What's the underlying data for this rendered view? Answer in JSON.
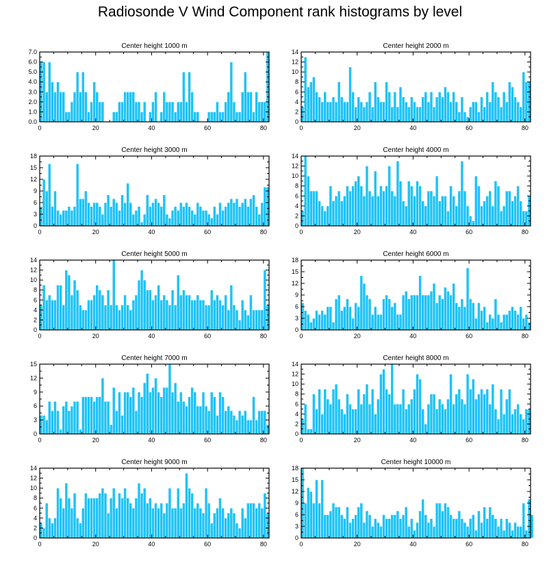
{
  "title": "Radiosonde V Wind Component rank histograms by level",
  "colors": {
    "bar": "#1ec3f7",
    "bar_edge": "#ffffff",
    "axis": "#000000"
  },
  "chart_data": [
    {
      "type": "bar",
      "title": "Center height 1000 m",
      "xlim": [
        0,
        82
      ],
      "ylim": [
        0,
        7
      ],
      "xticks": [
        0,
        20,
        40,
        60,
        80
      ],
      "yticks": [
        0,
        1,
        2,
        3,
        4,
        5,
        6,
        7
      ],
      "ytick_labels": [
        "0.0",
        "1.0",
        "2.0",
        "3.0",
        "4.0",
        "5.0",
        "6.0",
        "7.0"
      ],
      "values": [
        6,
        6,
        3,
        6,
        4,
        3,
        4,
        3,
        3,
        1,
        1,
        2,
        3,
        5,
        3,
        5,
        3,
        1,
        2,
        4,
        3,
        2,
        2,
        0,
        0,
        0,
        1,
        1,
        2,
        2,
        3,
        3,
        3,
        3,
        2,
        2,
        1,
        2,
        0,
        1,
        2,
        3,
        0,
        1,
        3,
        2,
        2,
        2,
        1,
        2,
        2,
        5,
        2,
        5,
        3,
        1,
        1,
        0,
        0,
        0,
        1,
        1,
        1,
        2,
        1,
        1,
        2,
        3,
        6,
        2,
        1,
        1,
        3,
        5,
        3,
        3,
        1,
        3,
        2,
        2,
        2,
        7
      ]
    },
    {
      "type": "bar",
      "title": "Center height 2000 m",
      "xlim": [
        0,
        82
      ],
      "ylim": [
        0,
        14
      ],
      "xticks": [
        0,
        20,
        40,
        60,
        80
      ],
      "yticks": [
        0,
        2,
        4,
        6,
        8,
        10,
        12,
        14
      ],
      "ytick_labels": [
        "0",
        "2",
        "4",
        "6",
        "8",
        "10",
        "12",
        "14"
      ],
      "values": [
        3,
        13,
        7,
        8,
        9,
        6,
        5,
        4,
        6,
        4,
        4,
        5,
        4,
        8,
        5,
        4,
        4,
        11,
        6,
        3,
        5,
        4,
        3,
        4,
        6,
        3,
        8,
        5,
        4,
        4,
        8,
        6,
        3,
        6,
        3,
        7,
        5,
        4,
        3,
        5,
        4,
        3,
        3,
        5,
        6,
        4,
        6,
        3,
        5,
        6,
        5,
        7,
        6,
        4,
        6,
        4,
        2,
        5,
        2,
        1,
        3,
        4,
        4,
        2,
        5,
        3,
        6,
        4,
        8,
        6,
        5,
        3,
        6,
        4,
        8,
        7,
        5,
        4,
        3,
        10,
        8,
        8
      ]
    },
    {
      "type": "bar",
      "title": "Center height 3000 m",
      "xlim": [
        0,
        82
      ],
      "ylim": [
        0,
        18
      ],
      "xticks": [
        0,
        20,
        40,
        60,
        80
      ],
      "yticks": [
        0,
        3,
        6,
        9,
        12,
        15,
        18
      ],
      "ytick_labels": [
        "0",
        "3",
        "6",
        "9",
        "12",
        "15",
        "18"
      ],
      "values": [
        5,
        12,
        9,
        16,
        5,
        9,
        4,
        3,
        4,
        4,
        5,
        4,
        5,
        16,
        7,
        7,
        9,
        6,
        5,
        6,
        6,
        5,
        3,
        6,
        8,
        5,
        7,
        6,
        4,
        8,
        6,
        11,
        6,
        3,
        4,
        5,
        1,
        3,
        8,
        5,
        6,
        7,
        6,
        5,
        8,
        3,
        2,
        4,
        5,
        4,
        6,
        5,
        6,
        5,
        4,
        3,
        6,
        5,
        4,
        4,
        3,
        2,
        5,
        3,
        6,
        4,
        5,
        6,
        7,
        6,
        7,
        5,
        6,
        7,
        5,
        7,
        8,
        5,
        3,
        6,
        10,
        10
      ]
    },
    {
      "type": "bar",
      "title": "Center height 4000 m",
      "xlim": [
        0,
        82
      ],
      "ylim": [
        0,
        14
      ],
      "xticks": [
        0,
        20,
        40,
        60,
        80
      ],
      "yticks": [
        0,
        2,
        4,
        6,
        8,
        10,
        12,
        14
      ],
      "ytick_labels": [
        "0",
        "2",
        "4",
        "6",
        "8",
        "10",
        "12",
        "14"
      ],
      "values": [
        3,
        14,
        10,
        7,
        7,
        7,
        5,
        4,
        3,
        4,
        8,
        5,
        6,
        7,
        5,
        6,
        8,
        7,
        8,
        9,
        10,
        8,
        6,
        12,
        7,
        6,
        11,
        6,
        8,
        7,
        8,
        12,
        7,
        6,
        13,
        9,
        5,
        4,
        9,
        8,
        6,
        9,
        8,
        5,
        4,
        7,
        7,
        6,
        10,
        5,
        6,
        6,
        3,
        8,
        6,
        4,
        7,
        13,
        7,
        4,
        2,
        1,
        10,
        8,
        4,
        5,
        6,
        7,
        4,
        9,
        8,
        3,
        4,
        7,
        7,
        5,
        6,
        8,
        5,
        3,
        3,
        6
      ]
    },
    {
      "type": "bar",
      "title": "Center height 5000 m",
      "xlim": [
        0,
        82
      ],
      "ylim": [
        0,
        14
      ],
      "xticks": [
        0,
        20,
        40,
        60,
        80
      ],
      "yticks": [
        0,
        2,
        4,
        6,
        8,
        10,
        12,
        14
      ],
      "ytick_labels": [
        "0",
        "2",
        "4",
        "6",
        "8",
        "10",
        "12",
        "14"
      ],
      "values": [
        5,
        9,
        6,
        7,
        6,
        6,
        9,
        9,
        5,
        12,
        11,
        7,
        10,
        8,
        5,
        4,
        4,
        6,
        6,
        7,
        9,
        8,
        7,
        5,
        8,
        5,
        14,
        5,
        4,
        5,
        7,
        5,
        4,
        6,
        7,
        10,
        12,
        10,
        8,
        8,
        6,
        7,
        9,
        6,
        7,
        6,
        5,
        8,
        5,
        11,
        7,
        8,
        7,
        7,
        6,
        6,
        7,
        6,
        6,
        5,
        5,
        8,
        6,
        7,
        6,
        5,
        7,
        4,
        9,
        5,
        4,
        2,
        6,
        4,
        3,
        7,
        4,
        4,
        4,
        4,
        12,
        5
      ]
    },
    {
      "type": "bar",
      "title": "Center height 6000 m",
      "xlim": [
        0,
        82
      ],
      "ylim": [
        0,
        18
      ],
      "xticks": [
        0,
        20,
        40,
        60,
        80
      ],
      "yticks": [
        0,
        3,
        6,
        9,
        12,
        15,
        18
      ],
      "ytick_labels": [
        "0",
        "3",
        "6",
        "9",
        "12",
        "15",
        "18"
      ],
      "values": [
        7,
        5,
        4,
        2,
        3,
        5,
        4,
        5,
        4,
        6,
        6,
        2,
        8,
        9,
        5,
        6,
        8,
        6,
        3,
        7,
        6,
        14,
        12,
        9,
        8,
        4,
        6,
        4,
        4,
        8,
        9,
        8,
        6,
        7,
        4,
        4,
        9,
        10,
        8,
        9,
        9,
        9,
        14,
        9,
        9,
        9,
        10,
        12,
        7,
        9,
        8,
        11,
        10,
        9,
        12,
        7,
        6,
        8,
        6,
        16,
        8,
        7,
        3,
        7,
        5,
        6,
        2,
        4,
        3,
        8,
        4,
        2,
        4,
        4,
        5,
        6,
        5,
        4,
        6,
        3,
        4,
        2
      ]
    },
    {
      "type": "bar",
      "title": "Center height 7000 m",
      "xlim": [
        0,
        82
      ],
      "ylim": [
        0,
        15
      ],
      "xticks": [
        0,
        20,
        40,
        60,
        80
      ],
      "yticks": [
        0,
        3,
        6,
        9,
        12,
        15
      ],
      "ytick_labels": [
        "0",
        "3",
        "6",
        "9",
        "12",
        "15"
      ],
      "values": [
        4,
        4,
        3,
        7,
        5,
        7,
        5,
        1,
        6,
        7,
        5,
        6,
        7,
        7,
        1,
        8,
        8,
        8,
        8,
        7,
        8,
        8,
        12,
        7,
        7,
        2,
        10,
        5,
        9,
        4,
        9,
        9,
        8,
        10,
        5,
        9,
        8,
        11,
        13,
        9,
        10,
        12,
        9,
        8,
        10,
        10,
        15,
        9,
        11,
        7,
        9,
        7,
        6,
        8,
        10,
        9,
        6,
        6,
        9,
        6,
        5,
        9,
        8,
        4,
        9,
        8,
        5,
        6,
        5,
        4,
        3,
        5,
        4,
        5,
        3,
        3,
        8,
        3,
        5,
        5,
        5,
        2
      ]
    },
    {
      "type": "bar",
      "title": "Center height 8000 m",
      "xlim": [
        0,
        82
      ],
      "ylim": [
        0,
        14
      ],
      "xticks": [
        0,
        20,
        40,
        60,
        80
      ],
      "yticks": [
        0,
        2,
        4,
        6,
        8,
        10,
        12,
        14
      ],
      "ytick_labels": [
        "0",
        "2",
        "4",
        "6",
        "8",
        "10",
        "12",
        "14"
      ],
      "values": [
        3,
        6,
        1,
        1,
        8,
        5,
        9,
        4,
        9,
        7,
        6,
        9,
        10,
        7,
        5,
        4,
        8,
        6,
        5,
        5,
        9,
        6,
        8,
        10,
        6,
        9,
        4,
        7,
        12,
        13,
        9,
        8,
        14,
        6,
        6,
        6,
        9,
        5,
        6,
        7,
        9,
        12,
        11,
        5,
        2,
        6,
        8,
        8,
        5,
        7,
        6,
        5,
        7,
        12,
        6,
        8,
        9,
        7,
        6,
        12,
        9,
        11,
        7,
        8,
        9,
        8,
        9,
        6,
        10,
        5,
        3,
        9,
        4,
        7,
        9,
        4,
        5,
        6,
        4,
        3,
        5,
        5
      ]
    },
    {
      "type": "bar",
      "title": "Center height 9000 m",
      "xlim": [
        0,
        82
      ],
      "ylim": [
        0,
        14
      ],
      "xticks": [
        0,
        20,
        40,
        60,
        80
      ],
      "yticks": [
        0,
        2,
        4,
        6,
        8,
        10,
        12,
        14
      ],
      "ytick_labels": [
        "0",
        "2",
        "4",
        "6",
        "8",
        "10",
        "12",
        "14"
      ],
      "values": [
        3,
        2,
        7,
        4,
        3,
        4,
        10,
        8,
        6,
        11,
        8,
        6,
        9,
        4,
        3,
        6,
        9,
        8,
        8,
        8,
        8,
        9,
        10,
        9,
        5,
        8,
        10,
        6,
        9,
        8,
        10,
        8,
        7,
        6,
        8,
        11,
        9,
        10,
        7,
        8,
        6,
        7,
        6,
        7,
        5,
        7,
        10,
        6,
        6,
        10,
        6,
        7,
        13,
        10,
        9,
        6,
        7,
        6,
        5,
        10,
        7,
        3,
        5,
        6,
        8,
        6,
        4,
        5,
        6,
        5,
        3,
        2,
        6,
        4,
        7,
        7,
        7,
        6,
        7,
        6,
        9,
        5
      ]
    },
    {
      "type": "bar",
      "title": "Center height 10000 m",
      "xlim": [
        0,
        82
      ],
      "ylim": [
        0,
        18
      ],
      "xticks": [
        0,
        20,
        40,
        60,
        80
      ],
      "yticks": [
        0,
        3,
        6,
        9,
        12,
        15,
        18
      ],
      "ytick_labels": [
        "0",
        "3",
        "6",
        "9",
        "12",
        "15",
        "18"
      ],
      "values": [
        18,
        9,
        13,
        12,
        9,
        15,
        9,
        15,
        6,
        6,
        7,
        9,
        8,
        8,
        6,
        5,
        8,
        4,
        5,
        6,
        8,
        9,
        4,
        7,
        6,
        3,
        5,
        4,
        3,
        6,
        5,
        5,
        6,
        6,
        7,
        5,
        6,
        8,
        3,
        5,
        2,
        4,
        7,
        10,
        6,
        4,
        5,
        3,
        9,
        9,
        7,
        9,
        8,
        6,
        5,
        5,
        7,
        5,
        4,
        3,
        5,
        6,
        2,
        7,
        4,
        8,
        5,
        8,
        6,
        5,
        3,
        5,
        2,
        5,
        4,
        2,
        4,
        3,
        3,
        9,
        2,
        10,
        6
      ]
    }
  ]
}
